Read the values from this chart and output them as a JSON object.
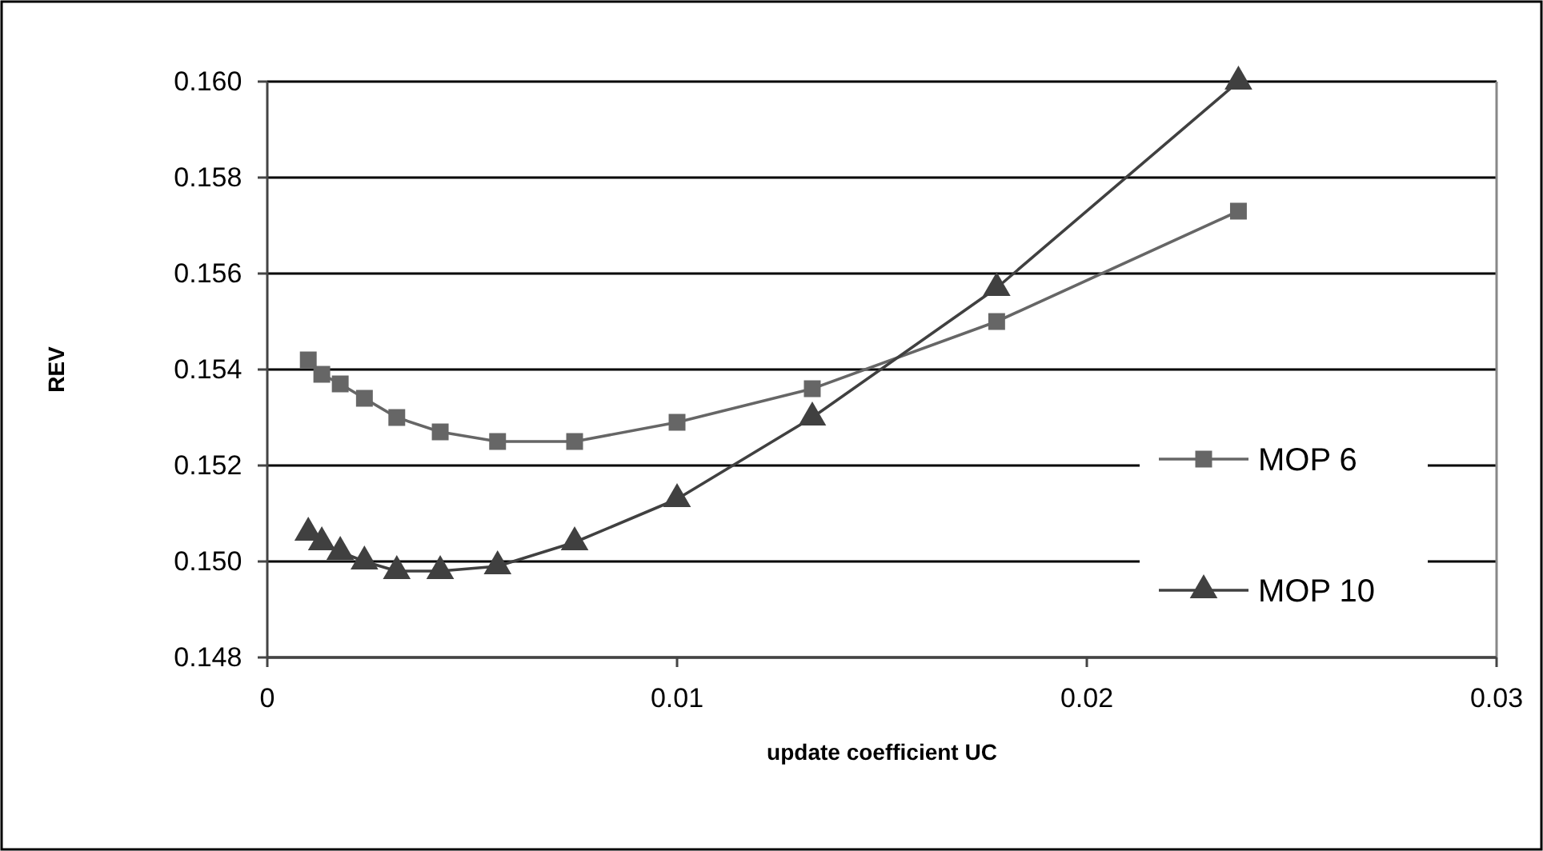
{
  "chart_data": {
    "type": "line",
    "xlabel": "update coefficient UC",
    "ylabel": "REV",
    "xlim": [
      0,
      0.03
    ],
    "ylim": [
      0.148,
      0.16
    ],
    "xticks": [
      0,
      0.01,
      0.02,
      0.03
    ],
    "yticks": [
      {
        "value": 0.148,
        "label": "0.148"
      },
      {
        "value": 0.15,
        "label": "0.150"
      },
      {
        "value": 0.152,
        "label": "0.152"
      },
      {
        "value": 0.154,
        "label": "0.154"
      },
      {
        "value": 0.156,
        "label": "0.156"
      },
      {
        "value": 0.158,
        "label": "0.158"
      },
      {
        "value": 0.16,
        "label": "0.160"
      }
    ],
    "grid": "y",
    "legend": "right",
    "line_style": "solid",
    "series": [
      {
        "name": "MOP 6",
        "color": "#666666",
        "marker": "square",
        "x": [
          0.001,
          0.00133,
          0.00178,
          0.00237,
          0.00316,
          0.00422,
          0.00562,
          0.0075,
          0.01,
          0.0133,
          0.0178,
          0.0237
        ],
        "values": [
          0.1542,
          0.1539,
          0.1537,
          0.1534,
          0.153,
          0.1527,
          0.1525,
          0.1525,
          0.1529,
          0.1536,
          0.155,
          0.1573
        ]
      },
      {
        "name": "MOP 10",
        "color": "#404040",
        "marker": "triangle",
        "x": [
          0.001,
          0.00133,
          0.00178,
          0.00237,
          0.00316,
          0.00422,
          0.00562,
          0.0075,
          0.01,
          0.0133,
          0.0178,
          0.0237
        ],
        "values": [
          0.1506,
          0.1504,
          0.1502,
          0.15,
          0.1498,
          0.1498,
          0.1499,
          0.1504,
          0.1513,
          0.153,
          0.1557,
          0.16
        ]
      }
    ]
  }
}
